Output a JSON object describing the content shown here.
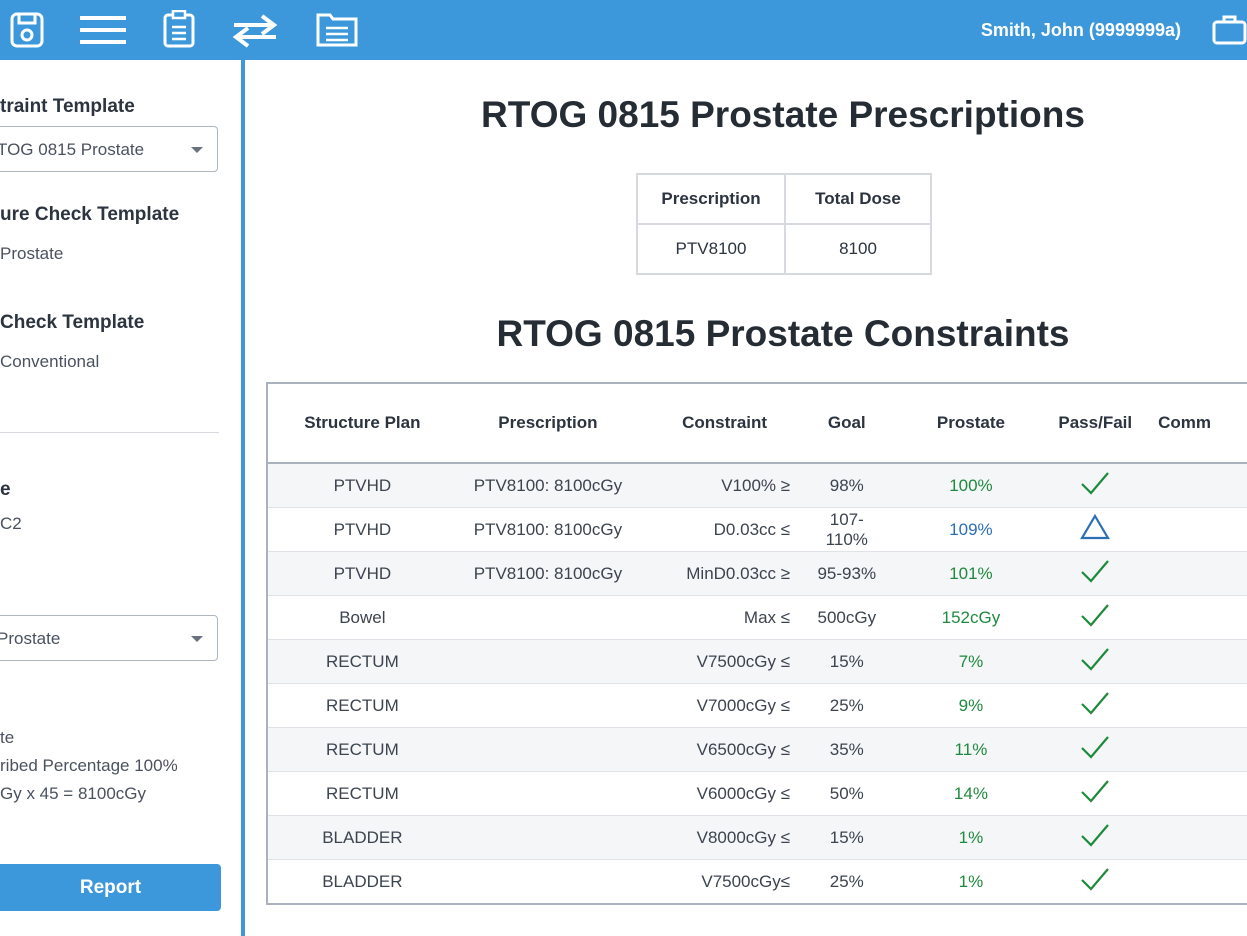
{
  "toolbar": {
    "user": "Smith, John (9999999a)"
  },
  "sidebar": {
    "constraint_label": "traint Template",
    "constraint_select": "TOG 0815 Prostate",
    "structure_label": "ure Check Template",
    "structure_value": "Prostate",
    "check_label": "Check Template",
    "check_value": "Conventional",
    "section_label": "e",
    "section_value": "C2",
    "plan_select": "Prostate",
    "details": [
      "te",
      "ribed Percentage 100%",
      "Gy x 45 = 8100cGy"
    ],
    "report_button": "Report"
  },
  "main": {
    "prescriptions_title": "RTOG 0815 Prostate Prescriptions",
    "prescriptions_table": {
      "headers": [
        "Prescription",
        "Total Dose"
      ],
      "rows": [
        [
          "PTV8100",
          "8100"
        ]
      ]
    },
    "constraints_title": "RTOG 0815 Prostate Constraints",
    "constraints_table": {
      "headers": [
        "Structure Plan",
        "Prescription",
        "Constraint",
        "Goal",
        "Prostate",
        "Pass/Fail",
        "Comm"
      ],
      "rows": [
        {
          "structure": "PTVHD",
          "prescription": "PTV8100: 8100cGy",
          "constraint": "V100% ≥",
          "goal": "98%",
          "result": "100%",
          "status": "pass"
        },
        {
          "structure": "PTVHD",
          "prescription": "PTV8100: 8100cGy",
          "constraint": "D0.03cc ≤",
          "goal": "107-110%",
          "result": "109%",
          "status": "warning"
        },
        {
          "structure": "PTVHD",
          "prescription": "PTV8100: 8100cGy",
          "constraint": "MinD0.03cc ≥",
          "goal": "95-93%",
          "result": "101%",
          "status": "pass"
        },
        {
          "structure": "Bowel",
          "constraint": "Max ≤",
          "goal": "500cGy",
          "result": "152cGy",
          "status": "pass"
        },
        {
          "structure": "RECTUM",
          "constraint": "V7500cGy ≤",
          "goal": "15%",
          "result": "7%",
          "status": "pass"
        },
        {
          "structure": "RECTUM",
          "constraint": "V7000cGy ≤",
          "goal": "25%",
          "result": "9%",
          "status": "pass"
        },
        {
          "structure": "RECTUM",
          "constraint": "V6500cGy ≤",
          "goal": "35%",
          "result": "11%",
          "status": "pass"
        },
        {
          "structure": "RECTUM",
          "constraint": "V6000cGy ≤",
          "goal": "50%",
          "result": "14%",
          "status": "pass"
        },
        {
          "structure": "BLADDER",
          "constraint": "V8000cGy ≤",
          "goal": "15%",
          "result": "1%",
          "status": "pass"
        },
        {
          "structure": "BLADDER",
          "constraint": "V7500cGy≤",
          "goal": "25%",
          "result": "1%",
          "status": "pass"
        }
      ]
    }
  }
}
